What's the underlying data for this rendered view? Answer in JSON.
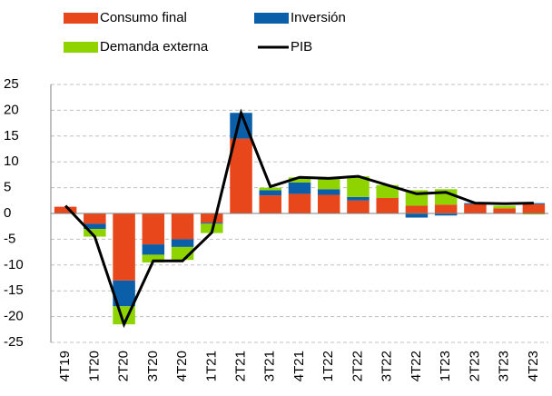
{
  "chart_data": {
    "type": "bar",
    "categories": [
      "4T19",
      "1T20",
      "2T20",
      "3T20",
      "4T20",
      "1T21",
      "2T21",
      "3T21",
      "4T21",
      "1T22",
      "2T22",
      "3T22",
      "4T22",
      "1T23",
      "2T23",
      "3T23",
      "4T23"
    ],
    "series": [
      {
        "name": "Consumo final",
        "color": "#e8461b",
        "values": [
          1.3,
          -2,
          -13,
          -6,
          -5,
          -1.8,
          14.5,
          3.5,
          3.8,
          3.6,
          2.5,
          3,
          1.5,
          1.7,
          1.8,
          1,
          1.8
        ]
      },
      {
        "name": "Inversión",
        "color": "#0b5ea8",
        "values": [
          0,
          -1,
          -5,
          -2,
          -1.5,
          -0.2,
          5,
          1,
          2.2,
          1.1,
          0.7,
          0,
          -0.8,
          -0.4,
          0.2,
          0,
          0.2
        ]
      },
      {
        "name": "Demanda externa",
        "color": "#8fd400",
        "values": [
          0,
          -1.5,
          -3.5,
          -1.5,
          -2.5,
          -1.8,
          0,
          0.5,
          1,
          2.2,
          4,
          2.5,
          3,
          3,
          0,
          0.5,
          -0.2
        ]
      },
      {
        "name": "PIB",
        "color": "#000000",
        "type": "line",
        "values": [
          1.5,
          -4.5,
          -21.5,
          -9.2,
          -9.2,
          -3.7,
          19.5,
          5.2,
          7,
          6.8,
          7.2,
          5.5,
          3.8,
          4.1,
          2,
          1.9,
          2
        ]
      }
    ],
    "ylim": [
      -25,
      25
    ],
    "yticks": [
      -25,
      -20,
      -15,
      -10,
      -5,
      0,
      5,
      10,
      15,
      20,
      25
    ],
    "grid": true
  }
}
